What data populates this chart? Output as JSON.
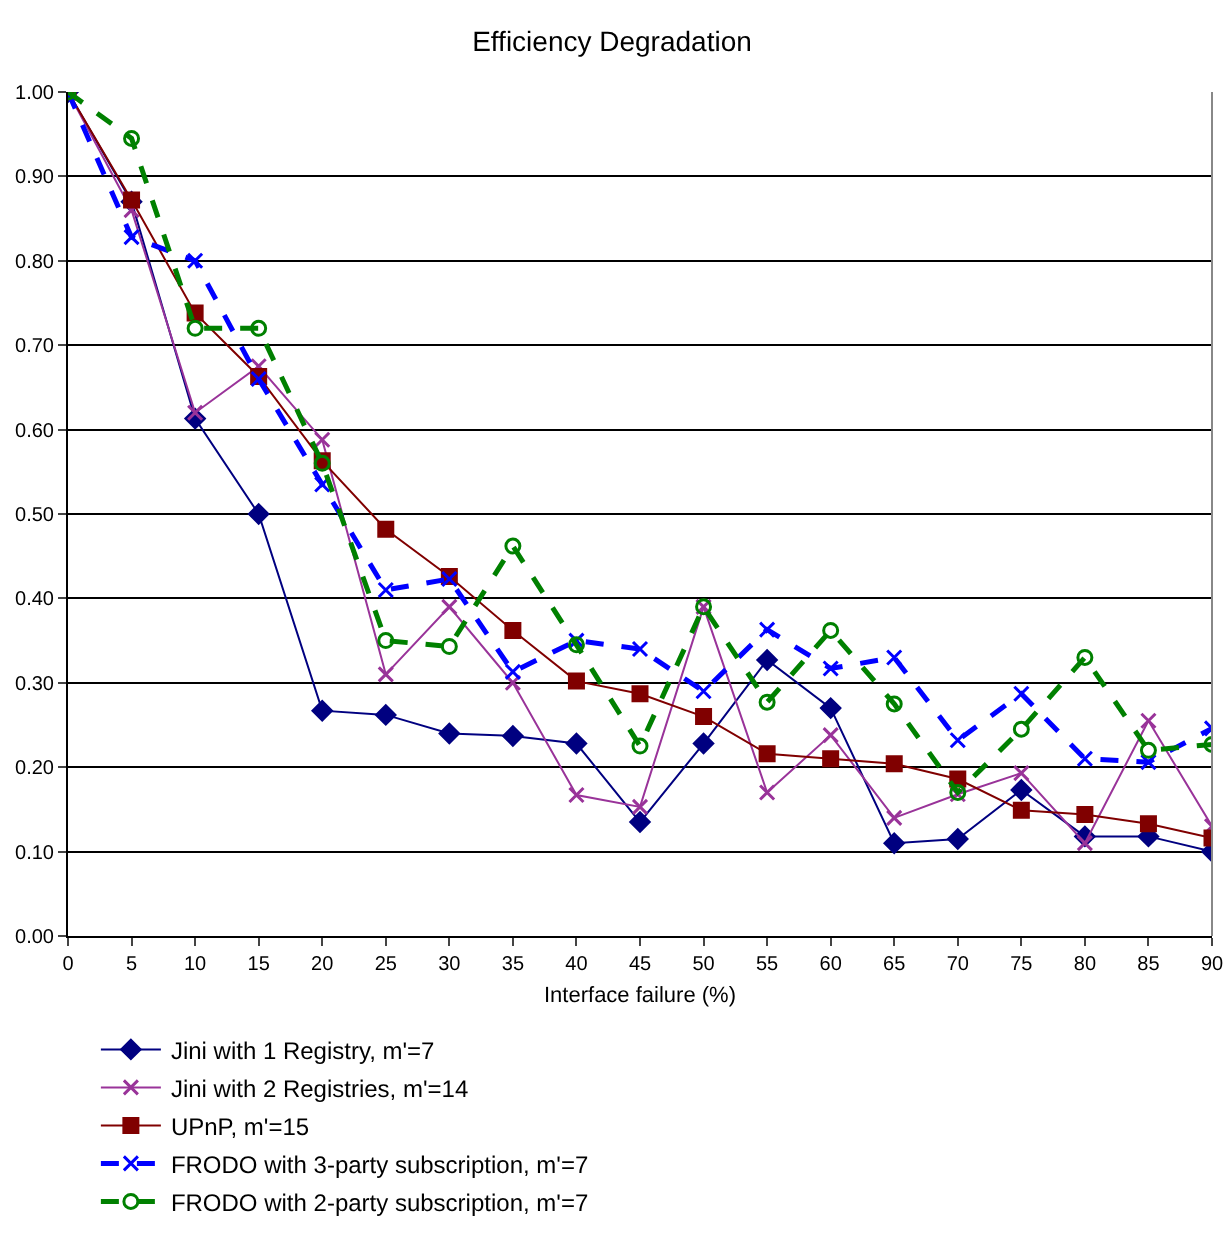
{
  "chart_data": {
    "type": "line",
    "title": "Efficiency Degradation",
    "xlabel": "Interface failure (%)",
    "x": [
      0,
      5,
      10,
      15,
      20,
      25,
      30,
      35,
      40,
      45,
      50,
      55,
      60,
      65,
      70,
      75,
      80,
      85,
      90
    ],
    "xlim": [
      0,
      90
    ],
    "xticks": [
      0,
      5,
      10,
      15,
      20,
      25,
      30,
      35,
      40,
      45,
      50,
      55,
      60,
      65,
      70,
      75,
      80,
      85,
      90
    ],
    "ylim": [
      0,
      1
    ],
    "yticks": [
      {
        "value": 0,
        "label": "0.00"
      },
      {
        "value": 0.1,
        "label": "0.10"
      },
      {
        "value": 0.2,
        "label": "0.20"
      },
      {
        "value": 0.3,
        "label": "0.30"
      },
      {
        "value": 0.4,
        "label": "0.40"
      },
      {
        "value": 0.5,
        "label": "0.50"
      },
      {
        "value": 0.6,
        "label": "0.60"
      },
      {
        "value": 0.7,
        "label": "0.70"
      },
      {
        "value": 0.8,
        "label": "0.80"
      },
      {
        "value": 0.9,
        "label": "0.90"
      },
      {
        "value": 1,
        "label": "1.00"
      }
    ],
    "grid": "y",
    "legend": "bottom",
    "series": [
      {
        "name": "Jini with 1 Registry, m'=7",
        "color": "#000080",
        "marker": "diamond",
        "line_style": "solid",
        "values": [
          1.0,
          0.87,
          0.613,
          0.5,
          0.267,
          0.262,
          0.24,
          0.237,
          0.228,
          0.135,
          0.228,
          0.327,
          0.27,
          0.11,
          0.115,
          0.173,
          0.118,
          0.118,
          0.1
        ]
      },
      {
        "name": "Jini with 2 Registries, m'=14",
        "color": "#993399",
        "marker": "cross",
        "line_style": "solid",
        "values": [
          1.0,
          0.86,
          0.62,
          0.675,
          0.588,
          0.31,
          0.39,
          0.3,
          0.167,
          0.153,
          0.39,
          0.17,
          0.238,
          0.14,
          0.168,
          0.193,
          0.11,
          0.255,
          0.13
        ]
      },
      {
        "name": "UPnP, m'=15",
        "color": "#800000",
        "marker": "square",
        "line_style": "solid",
        "values": [
          1.0,
          0.872,
          0.738,
          0.663,
          0.563,
          0.482,
          0.426,
          0.362,
          0.302,
          0.287,
          0.26,
          0.216,
          0.21,
          0.204,
          0.186,
          0.149,
          0.144,
          0.133,
          0.116
        ]
      },
      {
        "name": "FRODO with 3-party subscription, m'=7",
        "color": "#0000ff",
        "marker": "cross",
        "line_style": "dashed",
        "values": [
          1.0,
          0.828,
          0.8,
          0.66,
          0.535,
          0.41,
          0.423,
          0.313,
          0.35,
          0.34,
          0.29,
          0.363,
          0.317,
          0.33,
          0.232,
          0.287,
          0.21,
          0.206,
          0.246
        ]
      },
      {
        "name": "FRODO with 2-party subscription, m'=7",
        "color": "#008000",
        "marker": "circle",
        "line_style": "dashed",
        "values": [
          1.0,
          0.945,
          0.72,
          0.72,
          0.56,
          0.35,
          0.343,
          0.462,
          0.345,
          0.225,
          0.39,
          0.277,
          0.362,
          0.275,
          0.17,
          0.245,
          0.33,
          0.22,
          0.227
        ]
      }
    ]
  }
}
